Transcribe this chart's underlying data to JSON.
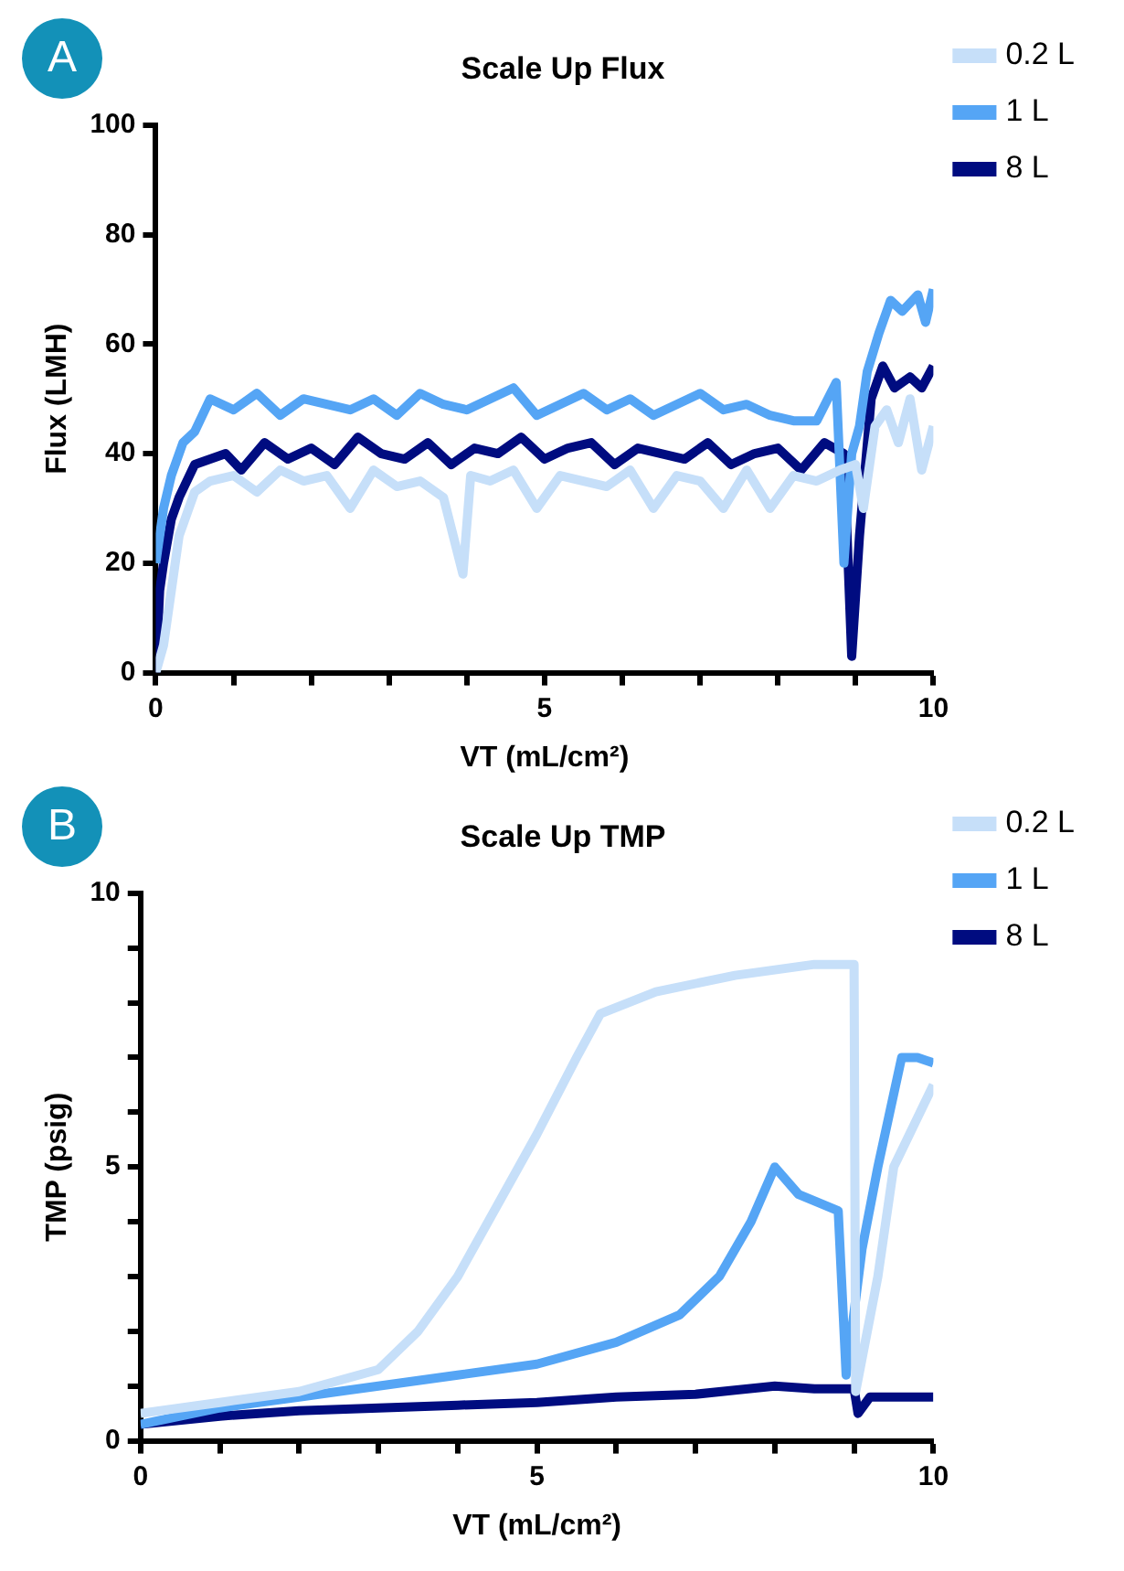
{
  "chart_data": [
    {
      "type": "line",
      "title": "Scale Up Flux",
      "xlabel": "VT (mL/cm²)",
      "ylabel": "Flux (LMH)",
      "annotations": [
        "A"
      ],
      "xlim": [
        0,
        10
      ],
      "xticks": [
        0,
        {
          "value": 1,
          "label": null
        },
        {
          "value": 2,
          "label": null
        },
        {
          "value": 3,
          "label": null
        },
        {
          "value": 4,
          "label": null
        },
        5,
        {
          "value": 6,
          "label": null
        },
        {
          "value": 7,
          "label": null
        },
        {
          "value": 8,
          "label": null
        },
        {
          "value": 9,
          "label": null
        },
        10
      ],
      "ylim": [
        0,
        100
      ],
      "yticks": [
        0,
        20,
        40,
        60,
        80,
        100
      ],
      "grid": false,
      "legend": "right",
      "marker": "none",
      "line_style": "solid",
      "series": [
        {
          "name": "0.2 L",
          "color": "#c6dff9",
          "x": [
            0,
            0.1,
            0.2,
            0.3,
            0.5,
            0.7,
            1,
            1.3,
            1.6,
            1.9,
            2.2,
            2.5,
            2.8,
            3.1,
            3.4,
            3.7,
            3.95,
            4.05,
            4.3,
            4.6,
            4.9,
            5.2,
            5.5,
            5.8,
            6.1,
            6.4,
            6.7,
            7,
            7.3,
            7.6,
            7.9,
            8.2,
            8.5,
            8.8,
            9.0,
            9.1,
            9.25,
            9.4,
            9.55,
            9.7,
            9.85,
            10
          ],
          "values": [
            0,
            5,
            15,
            25,
            33,
            35,
            36,
            33,
            37,
            35,
            36,
            30,
            37,
            34,
            35,
            32,
            18,
            36,
            35,
            37,
            30,
            36,
            35,
            34,
            37,
            30,
            36,
            35,
            30,
            37,
            30,
            36,
            35,
            37,
            38,
            30,
            45,
            48,
            42,
            50,
            37,
            45
          ]
        },
        {
          "name": "1 L",
          "color": "#55a5f5",
          "x": [
            0,
            0.1,
            0.2,
            0.35,
            0.5,
            0.7,
            1,
            1.3,
            1.6,
            1.9,
            2.2,
            2.5,
            2.8,
            3.1,
            3.4,
            3.7,
            4,
            4.3,
            4.6,
            4.9,
            5.2,
            5.5,
            5.8,
            6.1,
            6.4,
            6.7,
            7,
            7.3,
            7.6,
            7.9,
            8.2,
            8.5,
            8.75,
            8.85,
            8.95,
            9.05,
            9.15,
            9.3,
            9.45,
            9.6,
            9.8,
            9.9,
            10
          ],
          "values": [
            20,
            30,
            36,
            42,
            44,
            50,
            48,
            51,
            47,
            50,
            49,
            48,
            50,
            47,
            51,
            49,
            48,
            50,
            52,
            47,
            49,
            51,
            48,
            50,
            47,
            49,
            51,
            48,
            49,
            47,
            46,
            46,
            53,
            20,
            40,
            45,
            55,
            62,
            68,
            66,
            69,
            64,
            70
          ]
        },
        {
          "name": "8 L",
          "color": "#000c80",
          "x": [
            0,
            0.05,
            0.1,
            0.2,
            0.3,
            0.5,
            0.7,
            0.9,
            1.1,
            1.4,
            1.7,
            2,
            2.3,
            2.6,
            2.9,
            3.2,
            3.5,
            3.8,
            4.1,
            4.4,
            4.7,
            5,
            5.3,
            5.6,
            5.9,
            6.2,
            6.5,
            6.8,
            7.1,
            7.4,
            7.7,
            8,
            8.3,
            8.6,
            8.85,
            8.95,
            9.05,
            9.2,
            9.35,
            9.5,
            9.7,
            9.85,
            10
          ],
          "values": [
            0,
            15,
            20,
            28,
            32,
            38,
            39,
            40,
            37,
            42,
            39,
            41,
            38,
            43,
            40,
            39,
            42,
            38,
            41,
            40,
            43,
            39,
            41,
            42,
            38,
            41,
            40,
            39,
            42,
            38,
            40,
            41,
            37,
            42,
            40,
            3,
            25,
            50,
            56,
            52,
            54,
            52,
            56
          ]
        }
      ]
    },
    {
      "type": "line",
      "title": "Scale Up TMP",
      "xlabel": "VT (mL/cm²)",
      "ylabel": "TMP (psig)",
      "annotations": [
        "B"
      ],
      "xlim": [
        0,
        10
      ],
      "xticks": [
        0,
        {
          "value": 1,
          "label": null
        },
        {
          "value": 2,
          "label": null
        },
        {
          "value": 3,
          "label": null
        },
        {
          "value": 4,
          "label": null
        },
        5,
        {
          "value": 6,
          "label": null
        },
        {
          "value": 7,
          "label": null
        },
        {
          "value": 8,
          "label": null
        },
        {
          "value": 9,
          "label": null
        },
        10
      ],
      "ylim": [
        0,
        10
      ],
      "yticks": [
        0,
        {
          "value": 1,
          "label": null
        },
        {
          "value": 2,
          "label": null
        },
        {
          "value": 3,
          "label": null
        },
        {
          "value": 4,
          "label": null
        },
        5,
        {
          "value": 6,
          "label": null
        },
        {
          "value": 7,
          "label": null
        },
        {
          "value": 8,
          "label": null
        },
        {
          "value": 9,
          "label": null
        },
        10
      ],
      "grid": false,
      "legend": "right",
      "marker": "none",
      "line_style": "solid",
      "series": [
        {
          "name": "0.2 L",
          "color": "#c6dff9",
          "x": [
            0,
            1,
            2,
            3,
            3.5,
            4,
            4.5,
            5,
            5.5,
            5.8,
            6.5,
            7.5,
            8.5,
            9.0,
            9.02,
            9.3,
            9.5,
            10
          ],
          "values": [
            0.5,
            0.7,
            0.9,
            1.3,
            2,
            3,
            4.3,
            5.6,
            7,
            7.8,
            8.2,
            8.5,
            8.7,
            8.7,
            0.9,
            3,
            5,
            6.5
          ]
        },
        {
          "name": "1 L",
          "color": "#55a5f5",
          "x": [
            0,
            1,
            2,
            3,
            4,
            5,
            6,
            6.8,
            7.3,
            7.7,
            8,
            8.3,
            8.8,
            8.9,
            9.1,
            9.3,
            9.6,
            9.8,
            10
          ],
          "values": [
            0.3,
            0.6,
            0.8,
            1,
            1.2,
            1.4,
            1.8,
            2.3,
            3,
            4,
            5,
            4.5,
            4.2,
            1.2,
            3.5,
            5,
            7,
            7,
            6.9
          ]
        },
        {
          "name": "8 L",
          "color": "#000c80",
          "x": [
            0,
            1,
            2,
            3,
            4,
            5,
            6,
            7,
            8,
            8.5,
            9,
            9.05,
            9.2,
            10
          ],
          "values": [
            0.3,
            0.45,
            0.55,
            0.6,
            0.65,
            0.7,
            0.8,
            0.85,
            1,
            0.95,
            0.95,
            0.5,
            0.8,
            0.8
          ]
        }
      ]
    }
  ]
}
